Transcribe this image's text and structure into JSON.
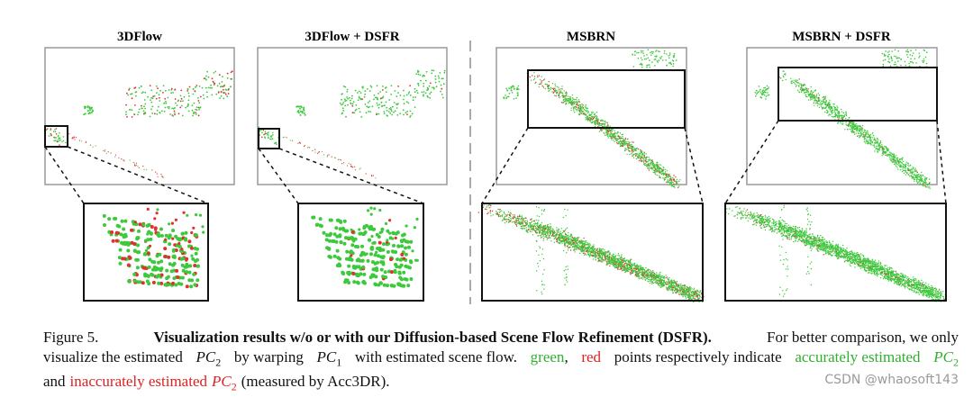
{
  "figure": {
    "panel_titles": [
      "3DFlow",
      "3DFlow + DSFR",
      "MSBRN",
      "MSBRN + DSFR"
    ],
    "caption": {
      "label": "Figure 5.",
      "bold": "Visualization results w/o or with our Diffusion-based Scene Flow Refinement (DSFR).",
      "line1_rest": "For better comparison, we only",
      "line2_a": "visualize the estimated",
      "math_pc2_a": {
        "base": "PC",
        "sub": "2"
      },
      "line2_b": "by warping",
      "math_pc1": {
        "base": "PC",
        "sub": "1"
      },
      "line2_c": "with estimated scene flow.",
      "green_word": "green",
      "comma": ",",
      "red_word": "red",
      "line2_d": "points respectively indicate",
      "green_phrase": "accurately estimated",
      "math_pc2_b": {
        "base": "PC",
        "sub": "2"
      },
      "line3_a": "and",
      "red_phrase": "inaccurately estimated",
      "math_pc2_c": {
        "base": "PC",
        "sub": "2"
      },
      "line3_b": "(measured by Acc3DR)."
    },
    "watermark": "CSDN @whaosoft143"
  }
}
